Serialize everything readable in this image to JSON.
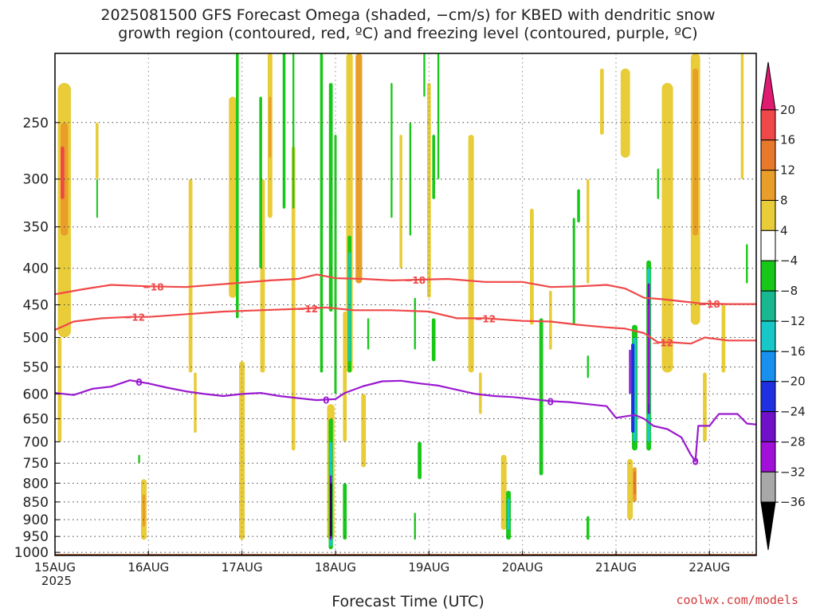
{
  "title_line1": "2025081500 GFS Forecast Omega (shaded, −cm/s) for KBED with dendritic snow",
  "title_line2": "growth region (contoured, red, ºC) and freezing level (contoured, purple, ºC)",
  "credit": "coolwx.com/models",
  "colors": {
    "red_contour": "#f04848",
    "purple_contour": "#9a1ad0",
    "ground": "#a0522d"
  },
  "chart_data": {
    "type": "heatmap",
    "xlabel": "Forecast Time (UTC)",
    "ylabel": "",
    "x_ticks": [
      {
        "label": "15AUG",
        "sub": "2025",
        "day": 0
      },
      {
        "label": "16AUG",
        "day": 1
      },
      {
        "label": "17AUG",
        "day": 2
      },
      {
        "label": "18AUG",
        "day": 3
      },
      {
        "label": "19AUG",
        "day": 4
      },
      {
        "label": "20AUG",
        "day": 5
      },
      {
        "label": "21AUG",
        "day": 6
      },
      {
        "label": "22AUG",
        "day": 7
      }
    ],
    "xlim": [
      0,
      7.5
    ],
    "y_ticks": [
      250,
      300,
      350,
      400,
      450,
      500,
      550,
      600,
      650,
      700,
      750,
      800,
      850,
      900,
      950,
      1000
    ],
    "ylim_hpa": [
      200,
      1010
    ],
    "y_scale": "log-pressure",
    "grid": true,
    "colorbar": {
      "labels": [
        "20",
        "16",
        "12",
        "8",
        "4",
        "−4",
        "−8",
        "−12",
        "−16",
        "−20",
        "−24",
        "−28",
        "−32",
        "−36"
      ],
      "colors": [
        "#e01a70",
        "#f04848",
        "#e8782a",
        "#e89e28",
        "#e8cc38",
        "#ffffff",
        "#18c818",
        "#18b890",
        "#18c8c8",
        "#1890f0",
        "#2030e0",
        "#7010c8",
        "#a010d8",
        "#a8a8a8",
        "#000000"
      ]
    },
    "contours": [
      {
        "level": "−18",
        "color": "red",
        "labels_at": [
          1.05,
          3.85,
          7.0
        ],
        "points": [
          [
            0,
            435
          ],
          [
            0.3,
            428
          ],
          [
            0.6,
            422
          ],
          [
            1.0,
            424
          ],
          [
            1.4,
            425
          ],
          [
            1.9,
            420
          ],
          [
            2.3,
            416
          ],
          [
            2.6,
            414
          ],
          [
            2.8,
            408
          ],
          [
            3.0,
            413
          ],
          [
            3.3,
            414
          ],
          [
            3.6,
            416
          ],
          [
            3.9,
            415
          ],
          [
            4.2,
            414
          ],
          [
            4.6,
            418
          ],
          [
            5.0,
            418
          ],
          [
            5.3,
            425
          ],
          [
            5.6,
            424
          ],
          [
            5.9,
            422
          ],
          [
            6.1,
            427
          ],
          [
            6.3,
            440
          ],
          [
            6.5,
            442
          ],
          [
            6.7,
            445
          ],
          [
            6.9,
            448
          ],
          [
            7.2,
            449
          ],
          [
            7.5,
            449
          ]
        ]
      },
      {
        "level": "−12",
        "color": "red",
        "labels_at": [
          0.85,
          2.7,
          4.6,
          6.5
        ],
        "points": [
          [
            0,
            488
          ],
          [
            0.2,
            475
          ],
          [
            0.5,
            470
          ],
          [
            0.8,
            468
          ],
          [
            1.0,
            468
          ],
          [
            1.3,
            465
          ],
          [
            1.8,
            460
          ],
          [
            2.2,
            458
          ],
          [
            2.6,
            456
          ],
          [
            2.9,
            454
          ],
          [
            3.2,
            458
          ],
          [
            3.6,
            458
          ],
          [
            4.0,
            460
          ],
          [
            4.3,
            470
          ],
          [
            4.6,
            470
          ],
          [
            5.0,
            474
          ],
          [
            5.3,
            475
          ],
          [
            5.6,
            480
          ],
          [
            5.9,
            484
          ],
          [
            6.1,
            486
          ],
          [
            6.3,
            493
          ],
          [
            6.45,
            508
          ],
          [
            6.6,
            508
          ],
          [
            6.8,
            510
          ],
          [
            6.95,
            500
          ],
          [
            7.2,
            505
          ],
          [
            7.5,
            505
          ]
        ]
      },
      {
        "level": "0",
        "color": "purple",
        "labels_at": [
          0.9,
          2.9,
          5.3,
          6.85
        ],
        "points": [
          [
            0,
            598
          ],
          [
            0.2,
            602
          ],
          [
            0.4,
            590
          ],
          [
            0.6,
            586
          ],
          [
            0.8,
            574
          ],
          [
            1.0,
            580
          ],
          [
            1.2,
            588
          ],
          [
            1.4,
            595
          ],
          [
            1.6,
            600
          ],
          [
            1.8,
            604
          ],
          [
            2.0,
            600
          ],
          [
            2.2,
            598
          ],
          [
            2.4,
            604
          ],
          [
            2.6,
            608
          ],
          [
            2.8,
            612
          ],
          [
            3.0,
            610
          ],
          [
            3.1,
            598
          ],
          [
            3.3,
            585
          ],
          [
            3.5,
            576
          ],
          [
            3.7,
            575
          ],
          [
            3.9,
            580
          ],
          [
            4.1,
            584
          ],
          [
            4.3,
            592
          ],
          [
            4.5,
            600
          ],
          [
            4.7,
            604
          ],
          [
            4.9,
            606
          ],
          [
            5.1,
            610
          ],
          [
            5.3,
            614
          ],
          [
            5.5,
            616
          ],
          [
            5.7,
            620
          ],
          [
            5.9,
            624
          ],
          [
            6.0,
            648
          ],
          [
            6.2,
            642
          ],
          [
            6.3,
            650
          ],
          [
            6.4,
            665
          ],
          [
            6.55,
            672
          ],
          [
            6.7,
            690
          ],
          [
            6.8,
            730
          ],
          [
            6.85,
            745
          ],
          [
            6.88,
            665
          ],
          [
            7.0,
            665
          ],
          [
            7.1,
            640
          ],
          [
            7.3,
            640
          ],
          [
            7.4,
            660
          ],
          [
            7.5,
            662
          ]
        ]
      }
    ],
    "blobs_omega": [
      {
        "t": 0.1,
        "p0": 220,
        "p1": 500,
        "w": 0.14,
        "c": 4
      },
      {
        "t": 0.1,
        "p0": 250,
        "p1": 360,
        "w": 0.08,
        "c": 3
      },
      {
        "t": 0.08,
        "p0": 270,
        "p1": 320,
        "w": 0.04,
        "c": 1
      },
      {
        "t": 0.05,
        "p0": 500,
        "p1": 700,
        "w": 0.04,
        "c": 4
      },
      {
        "t": 0.45,
        "p0": 250,
        "p1": 300,
        "w": 0.03,
        "c": 4
      },
      {
        "t": 0.95,
        "p0": 790,
        "p1": 960,
        "w": 0.06,
        "c": 4
      },
      {
        "t": 0.95,
        "p0": 830,
        "p1": 920,
        "w": 0.03,
        "c": 3
      },
      {
        "t": 1.45,
        "p0": 300,
        "p1": 560,
        "w": 0.04,
        "c": 4
      },
      {
        "t": 1.5,
        "p0": 560,
        "p1": 680,
        "w": 0.03,
        "c": 4
      },
      {
        "t": 1.9,
        "p0": 230,
        "p1": 440,
        "w": 0.08,
        "c": 4
      },
      {
        "t": 2.0,
        "p0": 540,
        "p1": 960,
        "w": 0.06,
        "c": 4
      },
      {
        "t": 2.22,
        "p0": 300,
        "p1": 560,
        "w": 0.05,
        "c": 4
      },
      {
        "t": 2.3,
        "p0": 200,
        "p1": 340,
        "w": 0.05,
        "c": 4
      },
      {
        "t": 2.3,
        "p0": 230,
        "p1": 280,
        "w": 0.025,
        "c": 3
      },
      {
        "t": 2.55,
        "p0": 270,
        "p1": 720,
        "w": 0.04,
        "c": 4
      },
      {
        "t": 2.95,
        "p0": 620,
        "p1": 960,
        "w": 0.08,
        "c": 4
      },
      {
        "t": 3.1,
        "p0": 460,
        "p1": 700,
        "w": 0.04,
        "c": 4
      },
      {
        "t": 3.15,
        "p0": 200,
        "p1": 560,
        "w": 0.07,
        "c": 4
      },
      {
        "t": 3.25,
        "p0": 200,
        "p1": 420,
        "w": 0.07,
        "c": 3
      },
      {
        "t": 3.3,
        "p0": 600,
        "p1": 760,
        "w": 0.05,
        "c": 4
      },
      {
        "t": 3.7,
        "p0": 260,
        "p1": 400,
        "w": 0.03,
        "c": 4
      },
      {
        "t": 4.0,
        "p0": 220,
        "p1": 440,
        "w": 0.04,
        "c": 4
      },
      {
        "t": 4.45,
        "p0": 260,
        "p1": 560,
        "w": 0.06,
        "c": 4
      },
      {
        "t": 4.55,
        "p0": 560,
        "p1": 640,
        "w": 0.03,
        "c": 4
      },
      {
        "t": 4.8,
        "p0": 730,
        "p1": 930,
        "w": 0.06,
        "c": 4
      },
      {
        "t": 5.1,
        "p0": 330,
        "p1": 480,
        "w": 0.04,
        "c": 4
      },
      {
        "t": 5.3,
        "p0": 430,
        "p1": 520,
        "w": 0.03,
        "c": 4
      },
      {
        "t": 5.7,
        "p0": 300,
        "p1": 420,
        "w": 0.03,
        "c": 4
      },
      {
        "t": 5.85,
        "p0": 210,
        "p1": 260,
        "w": 0.04,
        "c": 4
      },
      {
        "t": 6.1,
        "p0": 210,
        "p1": 280,
        "w": 0.1,
        "c": 4
      },
      {
        "t": 6.15,
        "p0": 740,
        "p1": 900,
        "w": 0.06,
        "c": 4
      },
      {
        "t": 6.2,
        "p0": 760,
        "p1": 850,
        "w": 0.04,
        "c": 3
      },
      {
        "t": 6.2,
        "p0": 770,
        "p1": 830,
        "w": 0.025,
        "c": 2
      },
      {
        "t": 6.55,
        "p0": 220,
        "p1": 560,
        "w": 0.12,
        "c": 4
      },
      {
        "t": 6.85,
        "p0": 200,
        "p1": 480,
        "w": 0.1,
        "c": 4
      },
      {
        "t": 6.85,
        "p0": 210,
        "p1": 360,
        "w": 0.06,
        "c": 3
      },
      {
        "t": 6.95,
        "p0": 560,
        "p1": 700,
        "w": 0.04,
        "c": 4
      },
      {
        "t": 7.15,
        "p0": 450,
        "p1": 560,
        "w": 0.04,
        "c": 4
      },
      {
        "t": 7.35,
        "p0": 200,
        "p1": 300,
        "w": 0.03,
        "c": 4
      }
    ],
    "blobs_subsidence": [
      {
        "t": 0.45,
        "p0": 300,
        "p1": 340,
        "w": 0.015,
        "c": 6
      },
      {
        "t": 0.9,
        "p0": 730,
        "p1": 750,
        "w": 0.02,
        "c": 6
      },
      {
        "t": 1.95,
        "p0": 200,
        "p1": 470,
        "w": 0.03,
        "c": 6
      },
      {
        "t": 2.2,
        "p0": 230,
        "p1": 400,
        "w": 0.03,
        "c": 6
      },
      {
        "t": 2.45,
        "p0": 200,
        "p1": 330,
        "w": 0.03,
        "c": 6
      },
      {
        "t": 2.55,
        "p0": 200,
        "p1": 330,
        "w": 0.02,
        "c": 6
      },
      {
        "t": 2.85,
        "p0": 200,
        "p1": 560,
        "w": 0.03,
        "c": 6
      },
      {
        "t": 2.95,
        "p0": 220,
        "p1": 460,
        "w": 0.04,
        "c": 6
      },
      {
        "t": 3.0,
        "p0": 260,
        "p1": 600,
        "w": 0.025,
        "c": 6
      },
      {
        "t": 2.95,
        "p0": 650,
        "p1": 990,
        "w": 0.045,
        "c": 6
      },
      {
        "t": 2.95,
        "p0": 700,
        "p1": 980,
        "w": 0.03,
        "c": 8
      },
      {
        "t": 2.95,
        "p0": 780,
        "p1": 960,
        "w": 0.02,
        "c": 11
      },
      {
        "t": 2.95,
        "p0": 800,
        "p1": 950,
        "w": 0.01,
        "c": 14
      },
      {
        "t": 3.15,
        "p0": 360,
        "p1": 560,
        "w": 0.04,
        "c": 6
      },
      {
        "t": 3.15,
        "p0": 380,
        "p1": 540,
        "w": 0.025,
        "c": 8
      },
      {
        "t": 3.1,
        "p0": 800,
        "p1": 960,
        "w": 0.04,
        "c": 6
      },
      {
        "t": 3.35,
        "p0": 470,
        "p1": 520,
        "w": 0.02,
        "c": 6
      },
      {
        "t": 3.6,
        "p0": 220,
        "p1": 340,
        "w": 0.02,
        "c": 6
      },
      {
        "t": 3.8,
        "p0": 250,
        "p1": 360,
        "w": 0.02,
        "c": 6
      },
      {
        "t": 3.85,
        "p0": 440,
        "p1": 520,
        "w": 0.02,
        "c": 6
      },
      {
        "t": 3.9,
        "p0": 700,
        "p1": 790,
        "w": 0.04,
        "c": 6
      },
      {
        "t": 3.85,
        "p0": 880,
        "p1": 960,
        "w": 0.02,
        "c": 6
      },
      {
        "t": 3.95,
        "p0": 200,
        "p1": 230,
        "w": 0.02,
        "c": 6
      },
      {
        "t": 4.05,
        "p0": 260,
        "p1": 320,
        "w": 0.03,
        "c": 6
      },
      {
        "t": 4.05,
        "p0": 470,
        "p1": 540,
        "w": 0.04,
        "c": 6
      },
      {
        "t": 4.1,
        "p0": 200,
        "p1": 300,
        "w": 0.02,
        "c": 6
      },
      {
        "t": 4.85,
        "p0": 820,
        "p1": 960,
        "w": 0.05,
        "c": 6
      },
      {
        "t": 4.85,
        "p0": 840,
        "p1": 930,
        "w": 0.025,
        "c": 8
      },
      {
        "t": 5.2,
        "p0": 470,
        "p1": 780,
        "w": 0.04,
        "c": 6
      },
      {
        "t": 5.55,
        "p0": 340,
        "p1": 480,
        "w": 0.025,
        "c": 6
      },
      {
        "t": 5.7,
        "p0": 530,
        "p1": 570,
        "w": 0.02,
        "c": 6
      },
      {
        "t": 5.7,
        "p0": 890,
        "p1": 960,
        "w": 0.03,
        "c": 6
      },
      {
        "t": 5.6,
        "p0": 310,
        "p1": 345,
        "w": 0.03,
        "c": 6
      },
      {
        "t": 6.2,
        "p0": 480,
        "p1": 720,
        "w": 0.06,
        "c": 6
      },
      {
        "t": 6.2,
        "p0": 500,
        "p1": 700,
        "w": 0.04,
        "c": 8
      },
      {
        "t": 6.18,
        "p0": 510,
        "p1": 680,
        "w": 0.035,
        "c": 10
      },
      {
        "t": 6.15,
        "p0": 520,
        "p1": 600,
        "w": 0.02,
        "c": 11
      },
      {
        "t": 6.35,
        "p0": 390,
        "p1": 720,
        "w": 0.05,
        "c": 6
      },
      {
        "t": 6.35,
        "p0": 400,
        "p1": 700,
        "w": 0.035,
        "c": 8
      },
      {
        "t": 6.35,
        "p0": 420,
        "p1": 640,
        "w": 0.025,
        "c": 11
      },
      {
        "t": 6.35,
        "p0": 450,
        "p1": 620,
        "w": 0.015,
        "c": 12
      },
      {
        "t": 6.45,
        "p0": 290,
        "p1": 320,
        "w": 0.02,
        "c": 6
      },
      {
        "t": 7.4,
        "p0": 370,
        "p1": 420,
        "w": 0.02,
        "c": 6
      }
    ]
  }
}
